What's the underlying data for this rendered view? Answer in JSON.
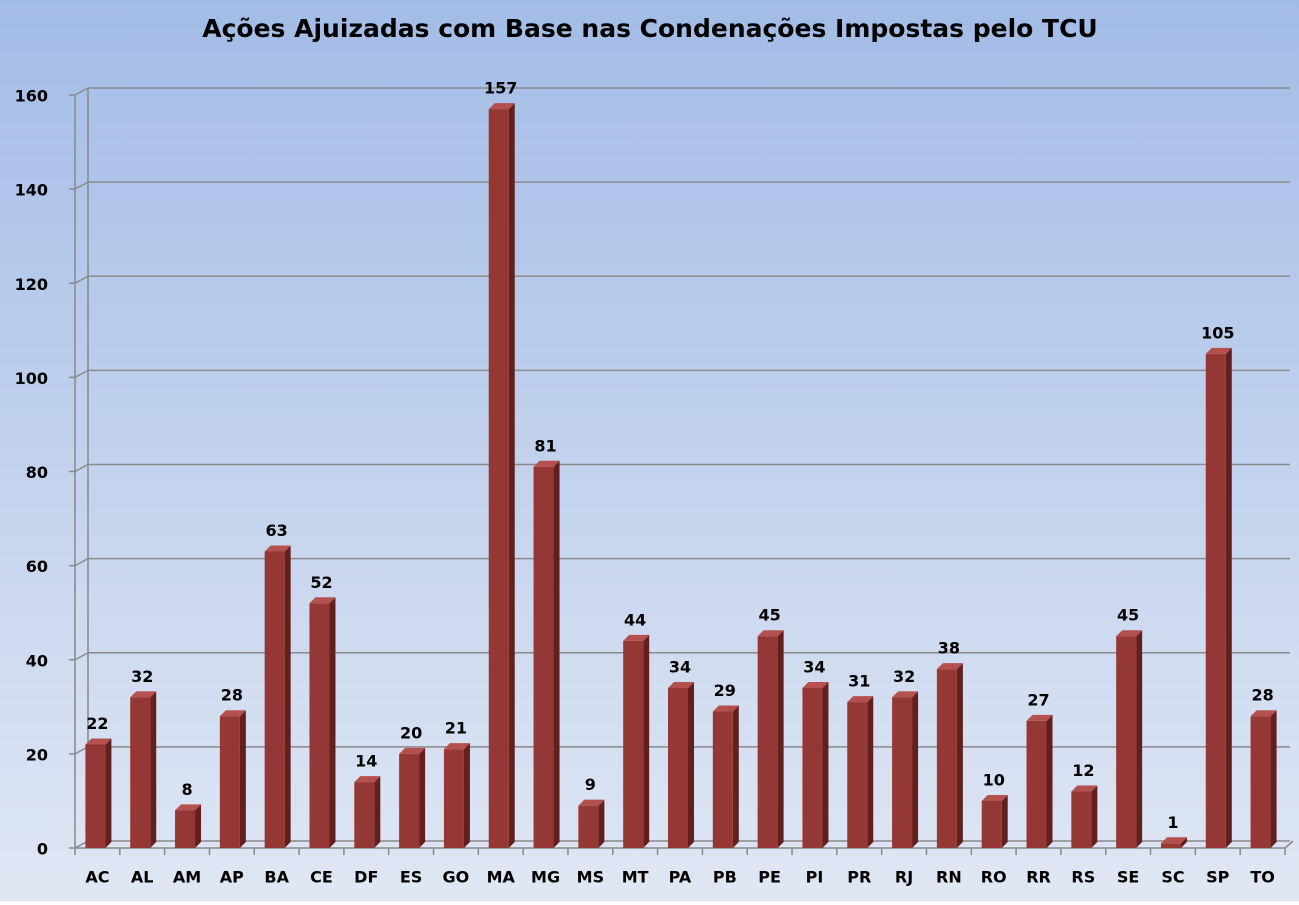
{
  "chart_data": {
    "type": "bar",
    "title": "Ações Ajuizadas com Base nas Condenações Impostas pelo TCU",
    "categories": [
      "AC",
      "AL",
      "AM",
      "AP",
      "BA",
      "CE",
      "DF",
      "ES",
      "GO",
      "MA",
      "MG",
      "MS",
      "MT",
      "PA",
      "PB",
      "PE",
      "PI",
      "PR",
      "RJ",
      "RN",
      "RO",
      "RR",
      "RS",
      "SE",
      "SC",
      "SP",
      "TO"
    ],
    "values": [
      22,
      32,
      8,
      28,
      63,
      52,
      14,
      20,
      21,
      157,
      81,
      9,
      44,
      34,
      29,
      45,
      34,
      31,
      32,
      38,
      10,
      27,
      12,
      45,
      1,
      105,
      28
    ],
    "color": "#953735",
    "ylim": [
      0,
      160
    ],
    "yticks": [
      0,
      20,
      40,
      60,
      80,
      100,
      120,
      140,
      160
    ],
    "grid": true
  }
}
